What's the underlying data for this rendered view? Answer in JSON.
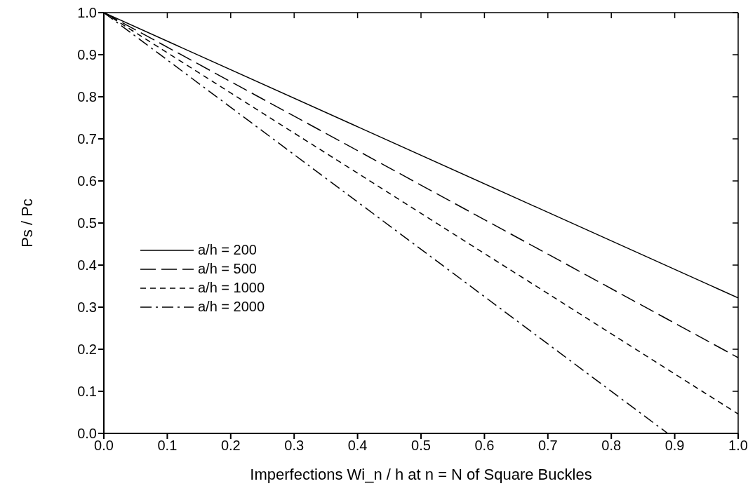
{
  "chart_data": {
    "type": "line",
    "xlabel": "Imperfections  Wi_n / h  at  n = N  of Square Buckles",
    "ylabel": "Ps / Pc",
    "xlim": [
      0,
      1
    ],
    "ylim": [
      0,
      1
    ],
    "xticks": [
      {
        "value": 0,
        "label": "0.0"
      },
      0.1,
      0.2,
      0.3,
      0.4,
      0.5,
      0.6,
      0.7,
      0.8,
      0.9,
      {
        "value": 1,
        "label": "1.0"
      }
    ],
    "yticks": [
      {
        "value": 0,
        "label": "0.0"
      },
      0.1,
      0.2,
      0.3,
      0.4,
      0.5,
      0.6,
      0.7,
      0.8,
      0.9,
      {
        "value": 1,
        "label": "1.0"
      }
    ],
    "grid": false,
    "legend": "bottom left",
    "marker": "none",
    "series": [
      {
        "name": "a/h = 200",
        "color": "#000000",
        "line_style": "solid",
        "x": [
          0,
          1
        ],
        "values": [
          1,
          0.322
        ]
      },
      {
        "name": "a/h = 500",
        "color": "#000000",
        "line_style": "longdash",
        "x": [
          0,
          1
        ],
        "values": [
          1,
          0.18
        ]
      },
      {
        "name": "a/h = 1000",
        "color": "#000000",
        "line_style": "dashed",
        "x": [
          0,
          1
        ],
        "values": [
          1,
          0.046
        ]
      },
      {
        "name": "a/h = 2000",
        "color": "#000000",
        "line_style": "dashdot",
        "x": [
          0,
          0.889
        ],
        "values": [
          1,
          0
        ]
      }
    ]
  }
}
